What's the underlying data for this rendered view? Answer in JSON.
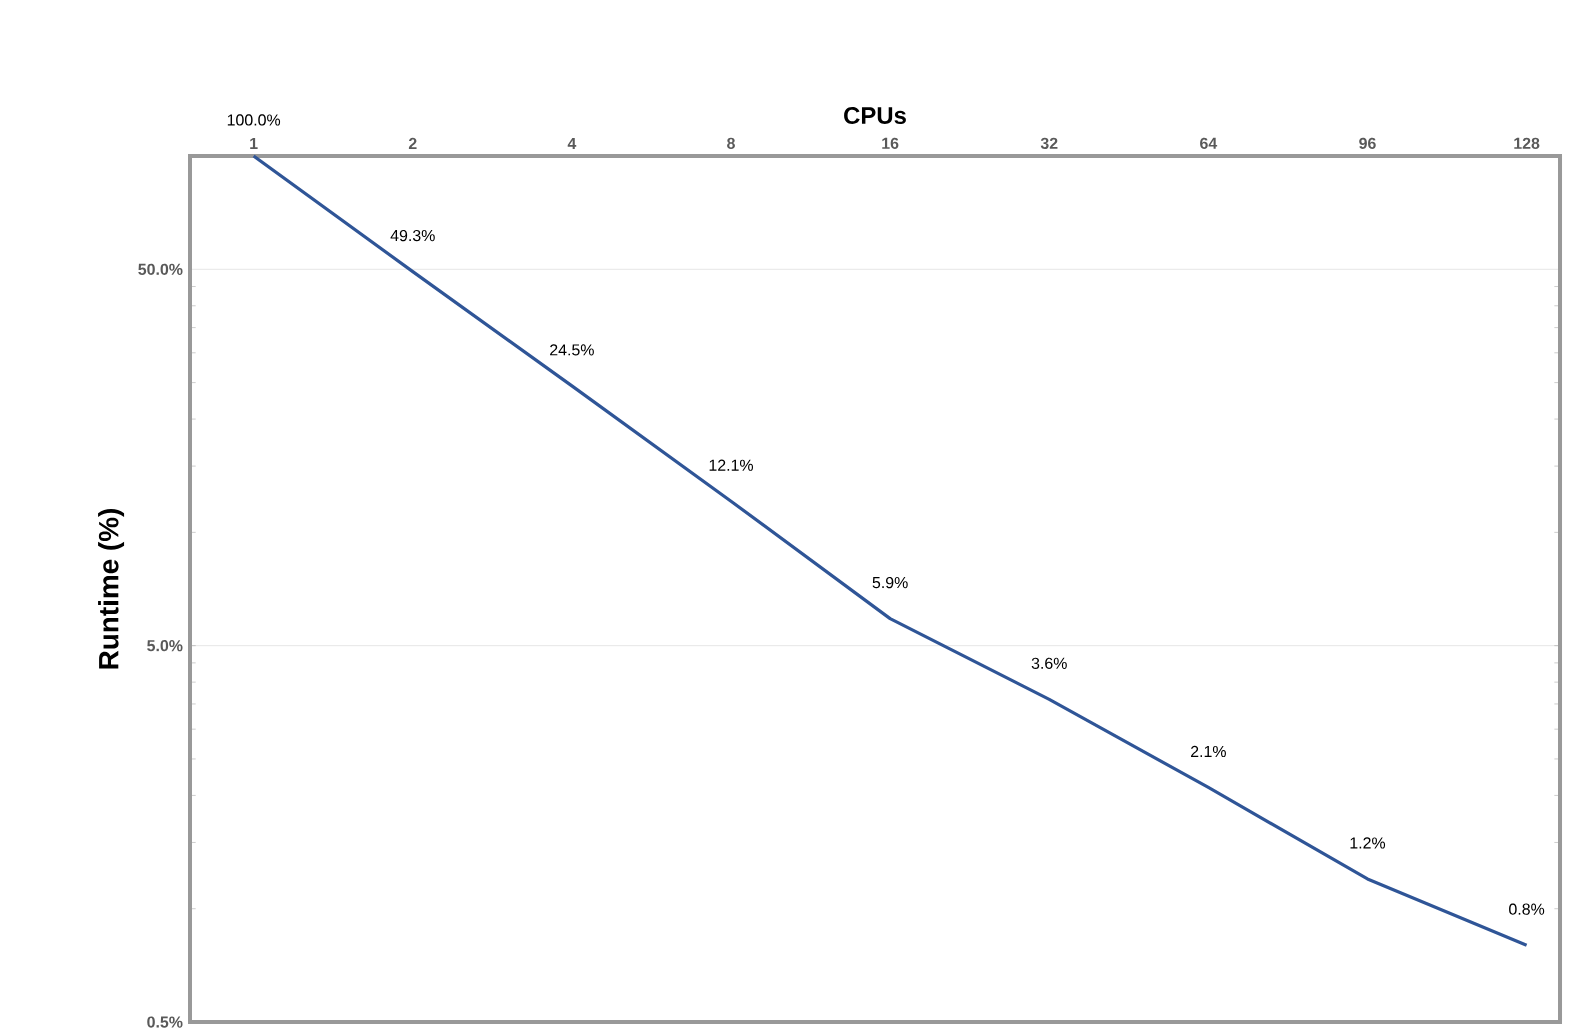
{
  "chart_data": {
    "type": "line",
    "xlabel": "CPUs",
    "ylabel": "Runtime (%)",
    "categories": [
      "1",
      "2",
      "4",
      "8",
      "16",
      "32",
      "64",
      "96",
      "128"
    ],
    "values": [
      100,
      49.3,
      24.5,
      12.1,
      5.9,
      3.6,
      2.1,
      1.2,
      0.8
    ],
    "value_labels": [
      "100.0%",
      "49.3%",
      "24.5%",
      "12.1%",
      "5.9%",
      "3.6%",
      "2.1%",
      "1.2%",
      "0.8%"
    ],
    "color": "#2f5597",
    "log": true,
    "grid": "y",
    "marker": "none",
    "line_style": "solid",
    "ylim": [
      0.5,
      100
    ],
    "yticks": [
      {
        "value": 0.5,
        "label": "0.5%"
      },
      {
        "value": 5,
        "label": "5.0%"
      },
      {
        "value": 50,
        "label": "50.0%"
      }
    ]
  }
}
